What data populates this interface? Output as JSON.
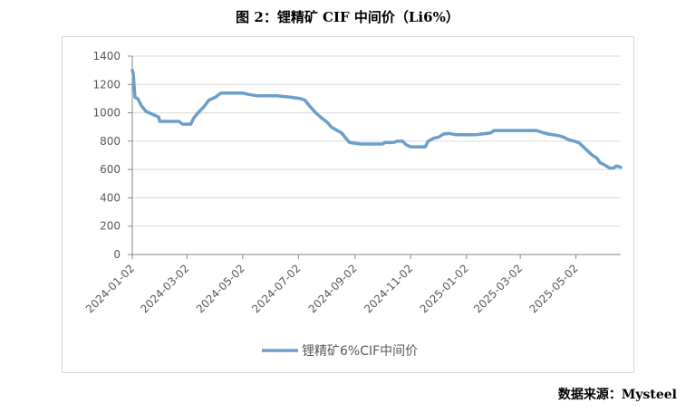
{
  "figure_title": "图 2：锂精矿 CIF 中间价（Li6%）",
  "source_note": "数据来源：Mysteel",
  "colors": {
    "series": "#6a9fcb",
    "grid": "#d9d9d9",
    "axis": "#868686"
  },
  "chart_data": {
    "type": "line",
    "title": "",
    "xlabel": "",
    "ylabel": "",
    "ylim": [
      0,
      1400
    ],
    "yticks": [
      0,
      200,
      400,
      600,
      800,
      1000,
      1200,
      1400
    ],
    "xlim": [
      "2024-01-02",
      "2025-06-20"
    ],
    "xticks": [
      "2024-01-02",
      "2024-03-02",
      "2024-05-02",
      "2024-07-02",
      "2024-09-02",
      "2024-11-02",
      "2025-01-02",
      "2025-03-02",
      "2025-05-02"
    ],
    "grid": "horizontal",
    "legend": "bottom",
    "series": [
      {
        "name": "锂精矿6%CIF中间价",
        "points": [
          [
            "2024-01-02",
            1300
          ],
          [
            "2024-01-03",
            1280
          ],
          [
            "2024-01-05",
            1110
          ],
          [
            "2024-01-08",
            1100
          ],
          [
            "2024-01-12",
            1050
          ],
          [
            "2024-01-17",
            1010
          ],
          [
            "2024-01-24",
            990
          ],
          [
            "2024-01-31",
            970
          ],
          [
            "2024-02-01",
            940
          ],
          [
            "2024-02-22",
            940
          ],
          [
            "2024-02-26",
            920
          ],
          [
            "2024-03-06",
            920
          ],
          [
            "2024-03-09",
            960
          ],
          [
            "2024-03-14",
            1000
          ],
          [
            "2024-03-20",
            1040
          ],
          [
            "2024-03-26",
            1090
          ],
          [
            "2024-04-02",
            1110
          ],
          [
            "2024-04-08",
            1140
          ],
          [
            "2024-05-02",
            1140
          ],
          [
            "2024-05-08",
            1130
          ],
          [
            "2024-05-18",
            1120
          ],
          [
            "2024-06-08",
            1120
          ],
          [
            "2024-06-24",
            1110
          ],
          [
            "2024-07-04",
            1100
          ],
          [
            "2024-07-09",
            1090
          ],
          [
            "2024-07-14",
            1050
          ],
          [
            "2024-07-21",
            1000
          ],
          [
            "2024-07-28",
            960
          ],
          [
            "2024-08-03",
            930
          ],
          [
            "2024-08-07",
            900
          ],
          [
            "2024-08-12",
            880
          ],
          [
            "2024-08-18",
            860
          ],
          [
            "2024-08-23",
            820
          ],
          [
            "2024-08-27",
            790
          ],
          [
            "2024-09-08",
            780
          ],
          [
            "2024-10-02",
            780
          ],
          [
            "2024-10-05",
            790
          ],
          [
            "2024-10-14",
            790
          ],
          [
            "2024-10-18",
            800
          ],
          [
            "2024-10-24",
            800
          ],
          [
            "2024-10-28",
            775
          ],
          [
            "2024-11-02",
            760
          ],
          [
            "2024-11-18",
            760
          ],
          [
            "2024-11-21",
            800
          ],
          [
            "2024-11-27",
            820
          ],
          [
            "2024-12-03",
            830
          ],
          [
            "2024-12-08",
            850
          ],
          [
            "2024-12-14",
            855
          ],
          [
            "2024-12-22",
            845
          ],
          [
            "2025-01-02",
            845
          ],
          [
            "2025-01-12",
            845
          ],
          [
            "2025-01-18",
            850
          ],
          [
            "2025-01-25",
            855
          ],
          [
            "2025-01-29",
            860
          ],
          [
            "2025-02-01",
            875
          ],
          [
            "2025-02-15",
            875
          ],
          [
            "2025-03-12",
            875
          ],
          [
            "2025-03-20",
            875
          ],
          [
            "2025-03-27",
            860
          ],
          [
            "2025-04-02",
            850
          ],
          [
            "2025-04-12",
            840
          ],
          [
            "2025-04-18",
            830
          ],
          [
            "2025-04-24",
            810
          ],
          [
            "2025-04-30",
            800
          ],
          [
            "2025-05-05",
            790
          ],
          [
            "2025-05-10",
            760
          ],
          [
            "2025-05-15",
            730
          ],
          [
            "2025-05-20",
            700
          ],
          [
            "2025-05-25",
            680
          ],
          [
            "2025-05-28",
            650
          ],
          [
            "2025-06-03",
            630
          ],
          [
            "2025-06-08",
            610
          ],
          [
            "2025-06-12",
            610
          ],
          [
            "2025-06-15",
            625
          ],
          [
            "2025-06-18",
            620
          ],
          [
            "2025-06-20",
            615
          ]
        ]
      }
    ]
  }
}
